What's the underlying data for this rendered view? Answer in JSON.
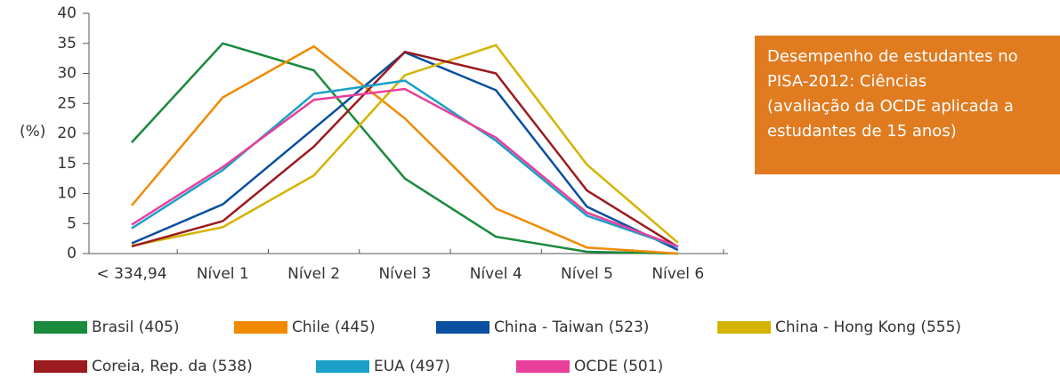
{
  "chart_data": {
    "type": "line",
    "title": [
      "Desempenho de estudantes no",
      "PISA-2012: Ciências",
      "(avaliação da OCDE aplicada a",
      "estudantes de 15 anos)"
    ],
    "y_label": "(%)",
    "categories": [
      "< 334,94",
      "Nível 1",
      "Nível 2",
      "Nível 3",
      "Nível 4",
      "Nível 5",
      "Nível 6"
    ],
    "ylim": [
      0,
      40
    ],
    "yticks": [
      0,
      5,
      10,
      15,
      20,
      25,
      30,
      35,
      40
    ],
    "series": [
      {
        "name": "Brasil (405)",
        "color": "#1a8a3c",
        "values": [
          18.5,
          35,
          30.5,
          12.5,
          2.8,
          0.3,
          0
        ]
      },
      {
        "name": "Chile (445)",
        "color": "#f08a00",
        "values": [
          8,
          26,
          34.5,
          22.5,
          7.5,
          1,
          0
        ]
      },
      {
        "name": "China - Taiwan (523)",
        "color": "#0a4fa0",
        "values": [
          1.7,
          8.2,
          20.8,
          33.5,
          27.2,
          7.8,
          0.6
        ]
      },
      {
        "name": "China - Hong Kong (555)",
        "color": "#d4b400",
        "values": [
          1.3,
          4.4,
          13,
          29.7,
          34.7,
          14.8,
          1.8
        ]
      },
      {
        "name": "Coreia, Rep. da (538)",
        "color": "#9b1b1e",
        "values": [
          1.2,
          5.4,
          17.8,
          33.6,
          30,
          10.5,
          1.1
        ]
      },
      {
        "name": "EUA (497)",
        "color": "#1ba0c8",
        "values": [
          4.2,
          13.9,
          26.6,
          28.8,
          18.8,
          6.3,
          1.1
        ]
      },
      {
        "name": "OCDE (501)",
        "color": "#e8409a",
        "values": [
          4.8,
          14.4,
          25.6,
          27.4,
          19.3,
          6.8,
          1.2
        ]
      }
    ]
  }
}
